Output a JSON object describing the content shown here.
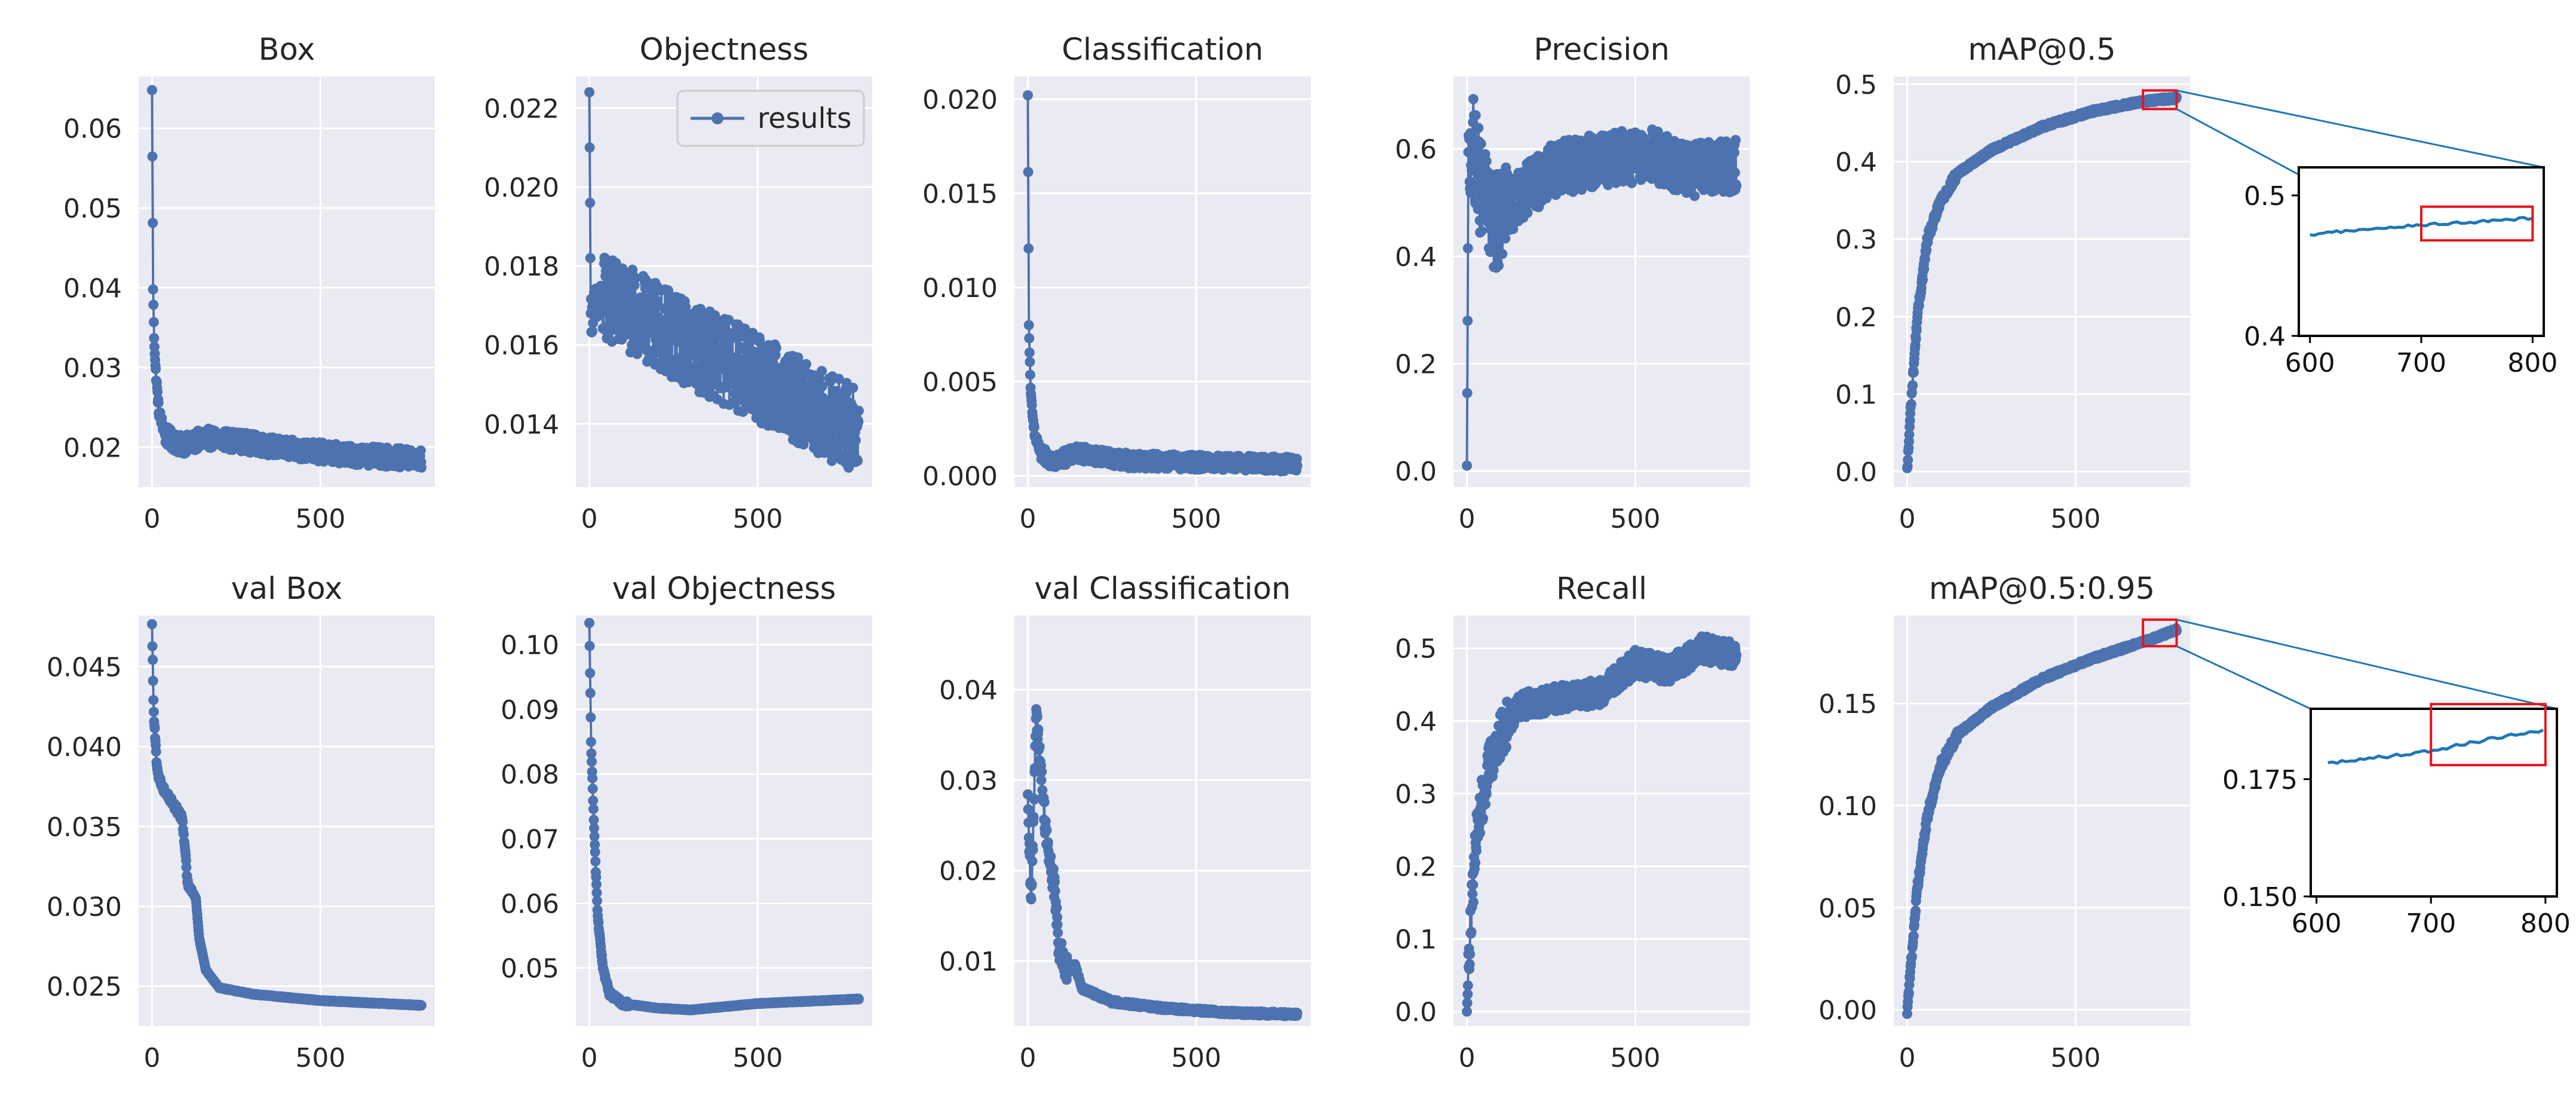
{
  "figure": {
    "legend_label": "results",
    "series_color": "#4c72b0",
    "inset_line_color": "#1f77b4",
    "highlight_color": "#e8141c",
    "plot_bg": "#eaeaf2",
    "grid_color": "#ffffff"
  },
  "chart_data": [
    {
      "key": "box",
      "type": "line",
      "title": "Box",
      "xlabel": "",
      "ylabel": "",
      "xlim": [
        -40,
        840
      ],
      "ylim": [
        0.015,
        0.0665
      ],
      "xticks": [
        0,
        500
      ],
      "xtick_labels": [
        "0",
        "500"
      ],
      "yticks": [
        0.02,
        0.03,
        0.04,
        0.05,
        0.06
      ],
      "ytick_labels": [
        "0.02",
        "0.03",
        "0.04",
        "0.05",
        "0.06"
      ],
      "series": [
        {
          "name": "results",
          "pattern": "loss_decay",
          "x": [
            0,
            800
          ],
          "anchors": [
            [
              0,
              0.0648
            ],
            [
              3,
              0.0398
            ],
            [
              6,
              0.034
            ],
            [
              10,
              0.03
            ],
            [
              20,
              0.0245
            ],
            [
              40,
              0.0215
            ],
            [
              80,
              0.0203
            ],
            [
              120,
              0.0205
            ],
            [
              150,
              0.0212
            ],
            [
              250,
              0.0208
            ],
            [
              400,
              0.0198
            ],
            [
              600,
              0.019
            ],
            [
              800,
              0.0185
            ]
          ],
          "noise": 0.0012
        }
      ]
    },
    {
      "key": "objectness",
      "type": "line",
      "title": "Objectness",
      "xlabel": "",
      "ylabel": "",
      "xlim": [
        -40,
        840
      ],
      "ylim": [
        0.0124,
        0.0228
      ],
      "xticks": [
        0,
        500
      ],
      "xtick_labels": [
        "0",
        "500"
      ],
      "yticks": [
        0.014,
        0.016,
        0.018,
        0.02,
        0.022
      ],
      "ytick_labels": [
        "0.014",
        "0.016",
        "0.018",
        "0.020",
        "0.022"
      ],
      "legend": {
        "position": "top-right",
        "entries": [
          "results"
        ]
      },
      "series": [
        {
          "name": "results",
          "pattern": "loss_decay",
          "x": [
            0,
            800
          ],
          "anchors": [
            [
              0,
              0.0224
            ],
            [
              4,
              0.0168
            ],
            [
              50,
              0.0172
            ],
            [
              150,
              0.0167
            ],
            [
              300,
              0.016
            ],
            [
              450,
              0.0154
            ],
            [
              600,
              0.0147
            ],
            [
              800,
              0.0138
            ]
          ],
          "noise": 0.0011
        }
      ]
    },
    {
      "key": "classification",
      "type": "line",
      "title": "Classification",
      "xlabel": "",
      "ylabel": "",
      "xlim": [
        -40,
        840
      ],
      "ylim": [
        -0.0006,
        0.0212
      ],
      "xticks": [
        0,
        500
      ],
      "xtick_labels": [
        "0",
        "500"
      ],
      "yticks": [
        0.0,
        0.005,
        0.01,
        0.015,
        0.02
      ],
      "ytick_labels": [
        "0.000",
        "0.005",
        "0.010",
        "0.015",
        "0.020"
      ],
      "series": [
        {
          "name": "results",
          "pattern": "loss_decay",
          "x": [
            0,
            800
          ],
          "anchors": [
            [
              0,
              0.0202
            ],
            [
              3,
              0.008
            ],
            [
              8,
              0.0045
            ],
            [
              20,
              0.0022
            ],
            [
              40,
              0.0011
            ],
            [
              80,
              0.0008
            ],
            [
              150,
              0.0012
            ],
            [
              300,
              0.0008
            ],
            [
              800,
              0.0006
            ]
          ],
          "noise": 0.0004
        }
      ]
    },
    {
      "key": "precision",
      "type": "line",
      "title": "Precision",
      "xlabel": "",
      "ylabel": "",
      "xlim": [
        -40,
        840
      ],
      "ylim": [
        -0.03,
        0.735
      ],
      "xticks": [
        0,
        500
      ],
      "xtick_labels": [
        "0",
        "500"
      ],
      "yticks": [
        0.0,
        0.2,
        0.4,
        0.6
      ],
      "ytick_labels": [
        "0.0",
        "0.2",
        "0.4",
        "0.6"
      ],
      "series": [
        {
          "name": "results",
          "pattern": "metric_noisy",
          "x": [
            0,
            800
          ],
          "anchors": [
            [
              0,
              0.01
            ],
            [
              4,
              0.55
            ],
            [
              15,
              0.62
            ],
            [
              40,
              0.53
            ],
            [
              80,
              0.46
            ],
            [
              150,
              0.51
            ],
            [
              250,
              0.56
            ],
            [
              400,
              0.58
            ],
            [
              550,
              0.59
            ],
            [
              650,
              0.56
            ],
            [
              800,
              0.57
            ]
          ],
          "noise": 0.05
        }
      ]
    },
    {
      "key": "map50",
      "type": "line",
      "title": "mAP@0.5",
      "xlabel": "",
      "ylabel": "",
      "xlim": [
        -40,
        840
      ],
      "ylim": [
        -0.02,
        0.51
      ],
      "xticks": [
        0,
        500
      ],
      "xtick_labels": [
        "0",
        "500"
      ],
      "yticks": [
        0.0,
        0.1,
        0.2,
        0.3,
        0.4,
        0.5
      ],
      "ytick_labels": [
        "0.0",
        "0.1",
        "0.2",
        "0.3",
        "0.4",
        "0.5"
      ],
      "series": [
        {
          "name": "results",
          "pattern": "metric_smooth",
          "x": [
            0,
            800
          ],
          "anchors": [
            [
              0,
              0.0
            ],
            [
              10,
              0.08
            ],
            [
              30,
              0.2
            ],
            [
              60,
              0.3
            ],
            [
              100,
              0.35
            ],
            [
              150,
              0.385
            ],
            [
              250,
              0.415
            ],
            [
              400,
              0.445
            ],
            [
              550,
              0.465
            ],
            [
              700,
              0.478
            ],
            [
              800,
              0.482
            ]
          ],
          "noise": 0.004
        }
      ],
      "zoom_box_x": [
        700,
        800
      ],
      "zoom_box_y": [
        0.468,
        0.492
      ],
      "inset": {
        "xlim": [
          590,
          810
        ],
        "ylim": [
          0.4,
          0.52
        ],
        "xticks": [
          600,
          700,
          800
        ],
        "xtick_labels": [
          "600",
          "700",
          "800"
        ],
        "yticks": [
          0.4,
          0.5
        ],
        "ytick_labels": [
          "0.4",
          "0.5"
        ],
        "box_x": [
          700,
          800
        ],
        "box_y": [
          0.468,
          0.492
        ],
        "anchors": [
          [
            600,
            0.472
          ],
          [
            650,
            0.476
          ],
          [
            700,
            0.479
          ],
          [
            750,
            0.481
          ],
          [
            800,
            0.484
          ]
        ]
      }
    },
    {
      "key": "val_box",
      "type": "line",
      "title": "val Box",
      "xlabel": "",
      "ylabel": "",
      "xlim": [
        -40,
        840
      ],
      "ylim": [
        0.0225,
        0.0482
      ],
      "xticks": [
        0,
        500
      ],
      "xtick_labels": [
        "0",
        "500"
      ],
      "yticks": [
        0.025,
        0.03,
        0.035,
        0.04,
        0.045
      ],
      "ytick_labels": [
        "0.025",
        "0.030",
        "0.035",
        "0.040",
        "0.045"
      ],
      "series": [
        {
          "name": "results",
          "pattern": "val_smooth",
          "x": [
            0,
            800
          ],
          "anchors": [
            [
              0,
              0.0475
            ],
            [
              5,
              0.042
            ],
            [
              15,
              0.0385
            ],
            [
              30,
              0.0375
            ],
            [
              60,
              0.0365
            ],
            [
              90,
              0.0355
            ],
            [
              100,
              0.033
            ],
            [
              105,
              0.0315
            ],
            [
              130,
              0.0305
            ],
            [
              140,
              0.028
            ],
            [
              160,
              0.026
            ],
            [
              200,
              0.0249
            ],
            [
              300,
              0.0245
            ],
            [
              500,
              0.0241
            ],
            [
              800,
              0.0238
            ]
          ],
          "noise": 0.0002
        }
      ]
    },
    {
      "key": "val_objectness",
      "type": "line",
      "title": "val Objectness",
      "xlabel": "",
      "ylabel": "",
      "xlim": [
        -40,
        840
      ],
      "ylim": [
        0.041,
        0.1045
      ],
      "xticks": [
        0,
        500
      ],
      "xtick_labels": [
        "0",
        "500"
      ],
      "yticks": [
        0.05,
        0.06,
        0.07,
        0.08,
        0.09,
        0.1
      ],
      "ytick_labels": [
        "0.05",
        "0.06",
        "0.07",
        "0.08",
        "0.09",
        "0.10"
      ],
      "series": [
        {
          "name": "results",
          "pattern": "val_smooth",
          "x": [
            0,
            800
          ],
          "anchors": [
            [
              0,
              0.103
            ],
            [
              5,
              0.085
            ],
            [
              15,
              0.07
            ],
            [
              25,
              0.058
            ],
            [
              40,
              0.05
            ],
            [
              60,
              0.046
            ],
            [
              100,
              0.0445
            ],
            [
              200,
              0.0438
            ],
            [
              300,
              0.0435
            ],
            [
              500,
              0.0445
            ],
            [
              800,
              0.0452
            ]
          ],
          "noise": 0.0004
        }
      ]
    },
    {
      "key": "val_classification",
      "type": "line",
      "title": "val Classification",
      "xlabel": "",
      "ylabel": "",
      "xlim": [
        -40,
        840
      ],
      "ylim": [
        0.0028,
        0.0482
      ],
      "xticks": [
        0,
        500
      ],
      "xtick_labels": [
        "0",
        "500"
      ],
      "yticks": [
        0.01,
        0.02,
        0.03,
        0.04
      ],
      "ytick_labels": [
        "0.01",
        "0.02",
        "0.03",
        "0.04"
      ],
      "series": [
        {
          "name": "results",
          "pattern": "val_smooth",
          "x": [
            0,
            800
          ],
          "anchors": [
            [
              0,
              0.027
            ],
            [
              10,
              0.016
            ],
            [
              25,
              0.038
            ],
            [
              40,
              0.03
            ],
            [
              60,
              0.022
            ],
            [
              80,
              0.018
            ],
            [
              90,
              0.012
            ],
            [
              110,
              0.009
            ],
            [
              140,
              0.0095
            ],
            [
              160,
              0.007
            ],
            [
              250,
              0.0055
            ],
            [
              400,
              0.0048
            ],
            [
              600,
              0.0043
            ],
            [
              800,
              0.0041
            ]
          ],
          "noise": 0.0015
        }
      ]
    },
    {
      "key": "recall",
      "type": "line",
      "title": "Recall",
      "xlabel": "",
      "ylabel": "",
      "xlim": [
        -40,
        840
      ],
      "ylim": [
        -0.02,
        0.545
      ],
      "xticks": [
        0,
        500
      ],
      "xtick_labels": [
        "0",
        "500"
      ],
      "yticks": [
        0.0,
        0.1,
        0.2,
        0.3,
        0.4,
        0.5
      ],
      "ytick_labels": [
        "0.0",
        "0.1",
        "0.2",
        "0.3",
        "0.4",
        "0.5"
      ],
      "series": [
        {
          "name": "results",
          "pattern": "metric_noisy",
          "x": [
            0,
            800
          ],
          "anchors": [
            [
              0,
              0.0
            ],
            [
              10,
              0.12
            ],
            [
              30,
              0.25
            ],
            [
              60,
              0.33
            ],
            [
              100,
              0.38
            ],
            [
              150,
              0.42
            ],
            [
              250,
              0.43
            ],
            [
              400,
              0.44
            ],
            [
              500,
              0.48
            ],
            [
              600,
              0.47
            ],
            [
              700,
              0.5
            ],
            [
              800,
              0.49
            ]
          ],
          "noise": 0.018
        }
      ]
    },
    {
      "key": "map5095",
      "type": "line",
      "title": "mAP@0.5:0.95",
      "xlabel": "",
      "ylabel": "",
      "xlim": [
        -40,
        840
      ],
      "ylim": [
        -0.008,
        0.193
      ],
      "xticks": [
        0,
        500
      ],
      "xtick_labels": [
        "0",
        "500"
      ],
      "yticks": [
        0.0,
        0.05,
        0.1,
        0.15
      ],
      "ytick_labels": [
        "0.00",
        "0.05",
        "0.10",
        "0.15"
      ],
      "series": [
        {
          "name": "results",
          "pattern": "metric_smooth",
          "x": [
            0,
            800
          ],
          "anchors": [
            [
              0,
              0.0
            ],
            [
              10,
              0.02
            ],
            [
              30,
              0.06
            ],
            [
              60,
              0.095
            ],
            [
              100,
              0.12
            ],
            [
              150,
              0.135
            ],
            [
              250,
              0.148
            ],
            [
              400,
              0.162
            ],
            [
              550,
              0.172
            ],
            [
              700,
              0.18
            ],
            [
              800,
              0.186
            ]
          ],
          "noise": 0.0015
        }
      ],
      "zoom_box_x": [
        700,
        800
      ],
      "zoom_box_y": [
        0.178,
        0.191
      ],
      "inset": {
        "xlim": [
          595,
          810
        ],
        "ylim": [
          0.15,
          0.19
        ],
        "xticks": [
          600,
          700,
          800
        ],
        "xtick_labels": [
          "600",
          "700",
          "800"
        ],
        "yticks": [
          0.15,
          0.175
        ],
        "ytick_labels": [
          "0.150",
          "0.175"
        ],
        "box_x": [
          700,
          800
        ],
        "box_y": [
          0.178,
          0.191
        ],
        "anchors": [
          [
            610,
            0.1785
          ],
          [
            650,
            0.1795
          ],
          [
            700,
            0.181
          ],
          [
            750,
            0.1835
          ],
          [
            800,
            0.1855
          ]
        ]
      }
    }
  ]
}
